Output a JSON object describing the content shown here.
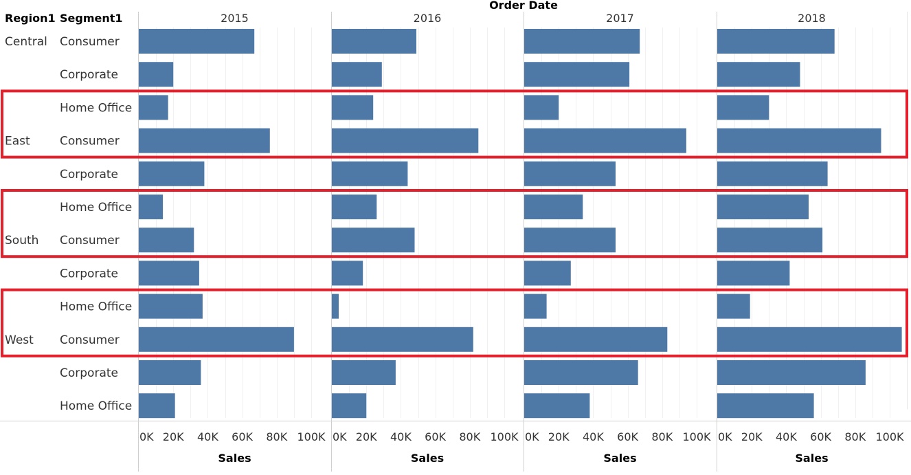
{
  "chart_data": {
    "type": "bar",
    "orientation": "horizontal",
    "column_header_title": "Order Date",
    "row_header_titles": [
      "Region1",
      "Segment1"
    ],
    "columns": [
      "2015",
      "2016",
      "2017",
      "2018"
    ],
    "rows": [
      {
        "region": "Central",
        "segment": "Consumer"
      },
      {
        "region": "",
        "segment": "Corporate"
      },
      {
        "region": "",
        "segment": "Home Office"
      },
      {
        "region": "East",
        "segment": "Consumer"
      },
      {
        "region": "",
        "segment": "Corporate"
      },
      {
        "region": "",
        "segment": "Home Office"
      },
      {
        "region": "South",
        "segment": "Consumer"
      },
      {
        "region": "",
        "segment": "Corporate"
      },
      {
        "region": "",
        "segment": "Home Office"
      },
      {
        "region": "West",
        "segment": "Consumer"
      },
      {
        "region": "",
        "segment": "Corporate"
      },
      {
        "region": "",
        "segment": "Home Office"
      }
    ],
    "values": [
      [
        67000,
        49000,
        67000,
        68000
      ],
      [
        20000,
        29000,
        61000,
        48000
      ],
      [
        17000,
        24000,
        20000,
        30000
      ],
      [
        76000,
        85000,
        94000,
        95000
      ],
      [
        38000,
        44000,
        53000,
        64000
      ],
      [
        14000,
        26000,
        34000,
        53000
      ],
      [
        32000,
        48000,
        53000,
        61000
      ],
      [
        35000,
        18000,
        27000,
        42000
      ],
      [
        37000,
        4000,
        13000,
        19000
      ],
      [
        90000,
        82000,
        83000,
        107000
      ],
      [
        36000,
        37000,
        66000,
        86000
      ],
      [
        21000,
        20000,
        38000,
        56000
      ]
    ],
    "xlabel": "Sales",
    "xlim": [
      0,
      108000
    ],
    "xticks": [
      0,
      20000,
      40000,
      60000,
      80000,
      100000
    ],
    "xtick_labels": [
      "0K",
      "20K",
      "40K",
      "60K",
      "80K",
      "100K"
    ],
    "bar_color": "#4e79a7",
    "highlight_color": "#e4202c",
    "grid": true
  }
}
